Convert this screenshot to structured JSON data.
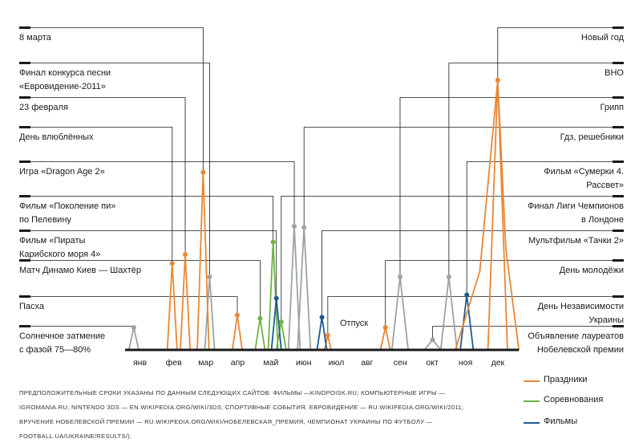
{
  "chart_data": {
    "type": "line",
    "xlabels": [
      "янв",
      "фев",
      "мар",
      "апр",
      "май",
      "июн",
      "июл",
      "авг",
      "сен",
      "окт",
      "ноя",
      "дек"
    ],
    "colors": {
      "gray": "#9da3a0",
      "orange": "#e98735",
      "green": "#70b244",
      "blue": "#1f5a8f",
      "axis": "#1a1a1a",
      "leader": "#1a1a1a"
    },
    "events": [
      {
        "label": [
          "Солнечное затмение",
          "с фазой 75—80%"
        ],
        "side": "left",
        "category": "gray",
        "peak_month": 0.12,
        "level": 0.2,
        "half_width": 0.15
      },
      {
        "label": [
          "Пасха"
        ],
        "side": "left",
        "category": "orange",
        "peak_month": 3.3,
        "level": 0.31,
        "half_width": 0.15
      },
      {
        "label": [
          "Матч Динамо Киев — Шахтёр"
        ],
        "side": "left",
        "category": "green",
        "peak_month": 4.0,
        "level": 0.28,
        "half_width": 0.15
      },
      {
        "label": [
          "Фильм «Пираты",
          "Карибского моря 4»"
        ],
        "side": "left",
        "category": "blue",
        "peak_month": 4.5,
        "level": 0.46,
        "half_width": 0.15
      },
      {
        "label": [
          "Фильм «Поколение пи»",
          "по Пелевину"
        ],
        "side": "left",
        "category": "green",
        "peak_month": 4.4,
        "level": 0.96,
        "half_width": 0.15
      },
      {
        "label": [
          "Игра «Dragon Age 2»"
        ],
        "side": "left",
        "category": "gray",
        "peak_month": 5.05,
        "level": 1.1,
        "half_width": 0.18
      },
      {
        "label": [
          "День влюблённых"
        ],
        "side": "left",
        "category": "orange",
        "peak_month": 1.3,
        "level": 0.77,
        "half_width": 0.15
      },
      {
        "label": [
          "23 февраля"
        ],
        "side": "left",
        "category": "orange",
        "peak_month": 1.7,
        "level": 0.85,
        "half_width": 0.15
      },
      {
        "label": [
          "Финал конкурса песни",
          "«Евровидение-2011»"
        ],
        "side": "left",
        "category": "gray",
        "peak_month": 2.45,
        "level": 0.65,
        "half_width": 0.15
      },
      {
        "label": [
          "8 марта"
        ],
        "side": "left",
        "category": "orange",
        "peak_month": 2.25,
        "level": 1.58,
        "half_width": 0.18
      },
      {
        "label": [
          "Новый год"
        ],
        "side": "right",
        "category": "orange",
        "peak_month": 11.3,
        "level": 2.4,
        "half_width": 0.3
      },
      {
        "label": [
          "ВНО"
        ],
        "side": "right",
        "category": "gray",
        "peak_month": 9.8,
        "level": 0.65,
        "half_width": 0.25
      },
      {
        "label": [
          "Грипп"
        ],
        "side": "right",
        "category": "gray",
        "peak_month": 8.3,
        "level": 0.65,
        "half_width": 0.25
      },
      {
        "label": [
          "Гдз, решебники"
        ],
        "side": "right",
        "category": "gray",
        "peak_month": 5.35,
        "level": 1.09,
        "half_width": 0.2
      },
      {
        "label": [
          "Фильм «Сумерки 4.",
          "Рассвет»"
        ],
        "side": "right",
        "category": "blue",
        "peak_month": 10.35,
        "level": 0.49,
        "half_width": 0.2
      },
      {
        "label": [
          "Финал Лиги Чемпионов",
          "в Лондоне"
        ],
        "side": "right",
        "category": "green",
        "peak_month": 4.65,
        "level": 0.25,
        "half_width": 0.15
      },
      {
        "label": [
          "Мультфильм «Тачки 2»"
        ],
        "side": "right",
        "category": "blue",
        "peak_month": 5.9,
        "level": 0.29,
        "half_width": 0.15
      },
      {
        "label": [
          "День молодёжи"
        ],
        "side": "right",
        "category": "orange",
        "peak_month": 7.85,
        "level": 0.2,
        "half_width": 0.15
      },
      {
        "label": [
          "День Независимости",
          "Украины"
        ],
        "side": "right",
        "category": "orange",
        "peak_month": 6.08,
        "level": 0.13,
        "half_width": 0.1
      },
      {
        "label": [
          "Объявление лауреатов",
          "Нобелевской премии"
        ],
        "side": "right",
        "category": "gray",
        "peak_month": 9.3,
        "level": 0.09,
        "half_width": 0.25
      }
    ],
    "extra_series": [
      {
        "category": "orange",
        "points": [
          [
            10.0,
            0.0
          ],
          [
            10.75,
            0.7
          ],
          [
            11.3,
            2.4
          ],
          [
            11.55,
            0.9
          ],
          [
            11.95,
            0.0
          ]
        ]
      }
    ],
    "annotation": "Отпуск"
  },
  "sources": "ПРЕДПОЛОЖИТЕЛЬНЫЕ СРОКИ УКАЗАНЫ ПО ДАННЫМ СЛЕДУЮЩИХ САЙТОВ: ФИЛЬМЫ —KINOPOISK.RU; КОМПЬЮТЕРНЫЕ ИГРЫ — IGROMANIA.RU; NINTENDO 3DS — EN.WIKIPEDIA.ORG/WIKI/3DS; СПОРТИВНЫЕ СОБЫТИЯ, ЕВРОВИДЕНИЕ — RU.WIKIPEDIA.ORG/WIKI/2011; ВРУЧЕНИЕ НОБЕЛЕВСКОЙ ПРЕМИИ — RU.WIKIPEDIA.ORG/WIKI/НОБЕЛЕВСКАЯ_ПРЕМИЯ, ЧЕМПИОНАТ УКРАИНЫ ПО ФУТБОЛУ — FOOTBALL.UA/UKRAINE/RESULTS/).",
  "legend": [
    {
      "label": "Праздники",
      "category": "orange"
    },
    {
      "label": "Соревнования",
      "category": "green"
    },
    {
      "label": "Фильмы",
      "category": "blue"
    }
  ]
}
